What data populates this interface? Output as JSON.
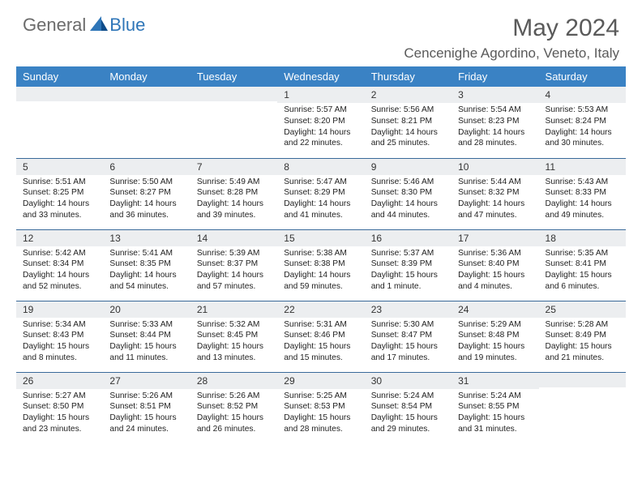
{
  "brand": {
    "general": "General",
    "blue": "Blue"
  },
  "title": "May 2024",
  "location": "Cencenighe Agordino, Veneto, Italy",
  "colors": {
    "header_bg": "#3a82c4",
    "header_text": "#ffffff",
    "daynum_bg": "#eceef0",
    "rule": "#3a6a9a",
    "body_text": "#222222",
    "title_text": "#5a5a5a",
    "brand_gray": "#6b6b6b",
    "brand_blue": "#2f76b8"
  },
  "typography": {
    "title_fontsize": 30,
    "location_fontsize": 17,
    "weekday_fontsize": 13,
    "daynum_fontsize": 12,
    "body_fontsize": 10.2
  },
  "weekdays": [
    "Sunday",
    "Monday",
    "Tuesday",
    "Wednesday",
    "Thursday",
    "Friday",
    "Saturday"
  ],
  "weeks": [
    [
      {
        "day": "",
        "lines": []
      },
      {
        "day": "",
        "lines": []
      },
      {
        "day": "",
        "lines": []
      },
      {
        "day": "1",
        "lines": [
          "Sunrise: 5:57 AM",
          "Sunset: 8:20 PM",
          "Daylight: 14 hours",
          "and 22 minutes."
        ]
      },
      {
        "day": "2",
        "lines": [
          "Sunrise: 5:56 AM",
          "Sunset: 8:21 PM",
          "Daylight: 14 hours",
          "and 25 minutes."
        ]
      },
      {
        "day": "3",
        "lines": [
          "Sunrise: 5:54 AM",
          "Sunset: 8:23 PM",
          "Daylight: 14 hours",
          "and 28 minutes."
        ]
      },
      {
        "day": "4",
        "lines": [
          "Sunrise: 5:53 AM",
          "Sunset: 8:24 PM",
          "Daylight: 14 hours",
          "and 30 minutes."
        ]
      }
    ],
    [
      {
        "day": "5",
        "lines": [
          "Sunrise: 5:51 AM",
          "Sunset: 8:25 PM",
          "Daylight: 14 hours",
          "and 33 minutes."
        ]
      },
      {
        "day": "6",
        "lines": [
          "Sunrise: 5:50 AM",
          "Sunset: 8:27 PM",
          "Daylight: 14 hours",
          "and 36 minutes."
        ]
      },
      {
        "day": "7",
        "lines": [
          "Sunrise: 5:49 AM",
          "Sunset: 8:28 PM",
          "Daylight: 14 hours",
          "and 39 minutes."
        ]
      },
      {
        "day": "8",
        "lines": [
          "Sunrise: 5:47 AM",
          "Sunset: 8:29 PM",
          "Daylight: 14 hours",
          "and 41 minutes."
        ]
      },
      {
        "day": "9",
        "lines": [
          "Sunrise: 5:46 AM",
          "Sunset: 8:30 PM",
          "Daylight: 14 hours",
          "and 44 minutes."
        ]
      },
      {
        "day": "10",
        "lines": [
          "Sunrise: 5:44 AM",
          "Sunset: 8:32 PM",
          "Daylight: 14 hours",
          "and 47 minutes."
        ]
      },
      {
        "day": "11",
        "lines": [
          "Sunrise: 5:43 AM",
          "Sunset: 8:33 PM",
          "Daylight: 14 hours",
          "and 49 minutes."
        ]
      }
    ],
    [
      {
        "day": "12",
        "lines": [
          "Sunrise: 5:42 AM",
          "Sunset: 8:34 PM",
          "Daylight: 14 hours",
          "and 52 minutes."
        ]
      },
      {
        "day": "13",
        "lines": [
          "Sunrise: 5:41 AM",
          "Sunset: 8:35 PM",
          "Daylight: 14 hours",
          "and 54 minutes."
        ]
      },
      {
        "day": "14",
        "lines": [
          "Sunrise: 5:39 AM",
          "Sunset: 8:37 PM",
          "Daylight: 14 hours",
          "and 57 minutes."
        ]
      },
      {
        "day": "15",
        "lines": [
          "Sunrise: 5:38 AM",
          "Sunset: 8:38 PM",
          "Daylight: 14 hours",
          "and 59 minutes."
        ]
      },
      {
        "day": "16",
        "lines": [
          "Sunrise: 5:37 AM",
          "Sunset: 8:39 PM",
          "Daylight: 15 hours",
          "and 1 minute."
        ]
      },
      {
        "day": "17",
        "lines": [
          "Sunrise: 5:36 AM",
          "Sunset: 8:40 PM",
          "Daylight: 15 hours",
          "and 4 minutes."
        ]
      },
      {
        "day": "18",
        "lines": [
          "Sunrise: 5:35 AM",
          "Sunset: 8:41 PM",
          "Daylight: 15 hours",
          "and 6 minutes."
        ]
      }
    ],
    [
      {
        "day": "19",
        "lines": [
          "Sunrise: 5:34 AM",
          "Sunset: 8:43 PM",
          "Daylight: 15 hours",
          "and 8 minutes."
        ]
      },
      {
        "day": "20",
        "lines": [
          "Sunrise: 5:33 AM",
          "Sunset: 8:44 PM",
          "Daylight: 15 hours",
          "and 11 minutes."
        ]
      },
      {
        "day": "21",
        "lines": [
          "Sunrise: 5:32 AM",
          "Sunset: 8:45 PM",
          "Daylight: 15 hours",
          "and 13 minutes."
        ]
      },
      {
        "day": "22",
        "lines": [
          "Sunrise: 5:31 AM",
          "Sunset: 8:46 PM",
          "Daylight: 15 hours",
          "and 15 minutes."
        ]
      },
      {
        "day": "23",
        "lines": [
          "Sunrise: 5:30 AM",
          "Sunset: 8:47 PM",
          "Daylight: 15 hours",
          "and 17 minutes."
        ]
      },
      {
        "day": "24",
        "lines": [
          "Sunrise: 5:29 AM",
          "Sunset: 8:48 PM",
          "Daylight: 15 hours",
          "and 19 minutes."
        ]
      },
      {
        "day": "25",
        "lines": [
          "Sunrise: 5:28 AM",
          "Sunset: 8:49 PM",
          "Daylight: 15 hours",
          "and 21 minutes."
        ]
      }
    ],
    [
      {
        "day": "26",
        "lines": [
          "Sunrise: 5:27 AM",
          "Sunset: 8:50 PM",
          "Daylight: 15 hours",
          "and 23 minutes."
        ]
      },
      {
        "day": "27",
        "lines": [
          "Sunrise: 5:26 AM",
          "Sunset: 8:51 PM",
          "Daylight: 15 hours",
          "and 24 minutes."
        ]
      },
      {
        "day": "28",
        "lines": [
          "Sunrise: 5:26 AM",
          "Sunset: 8:52 PM",
          "Daylight: 15 hours",
          "and 26 minutes."
        ]
      },
      {
        "day": "29",
        "lines": [
          "Sunrise: 5:25 AM",
          "Sunset: 8:53 PM",
          "Daylight: 15 hours",
          "and 28 minutes."
        ]
      },
      {
        "day": "30",
        "lines": [
          "Sunrise: 5:24 AM",
          "Sunset: 8:54 PM",
          "Daylight: 15 hours",
          "and 29 minutes."
        ]
      },
      {
        "day": "31",
        "lines": [
          "Sunrise: 5:24 AM",
          "Sunset: 8:55 PM",
          "Daylight: 15 hours",
          "and 31 minutes."
        ]
      },
      {
        "day": "",
        "lines": []
      }
    ]
  ]
}
